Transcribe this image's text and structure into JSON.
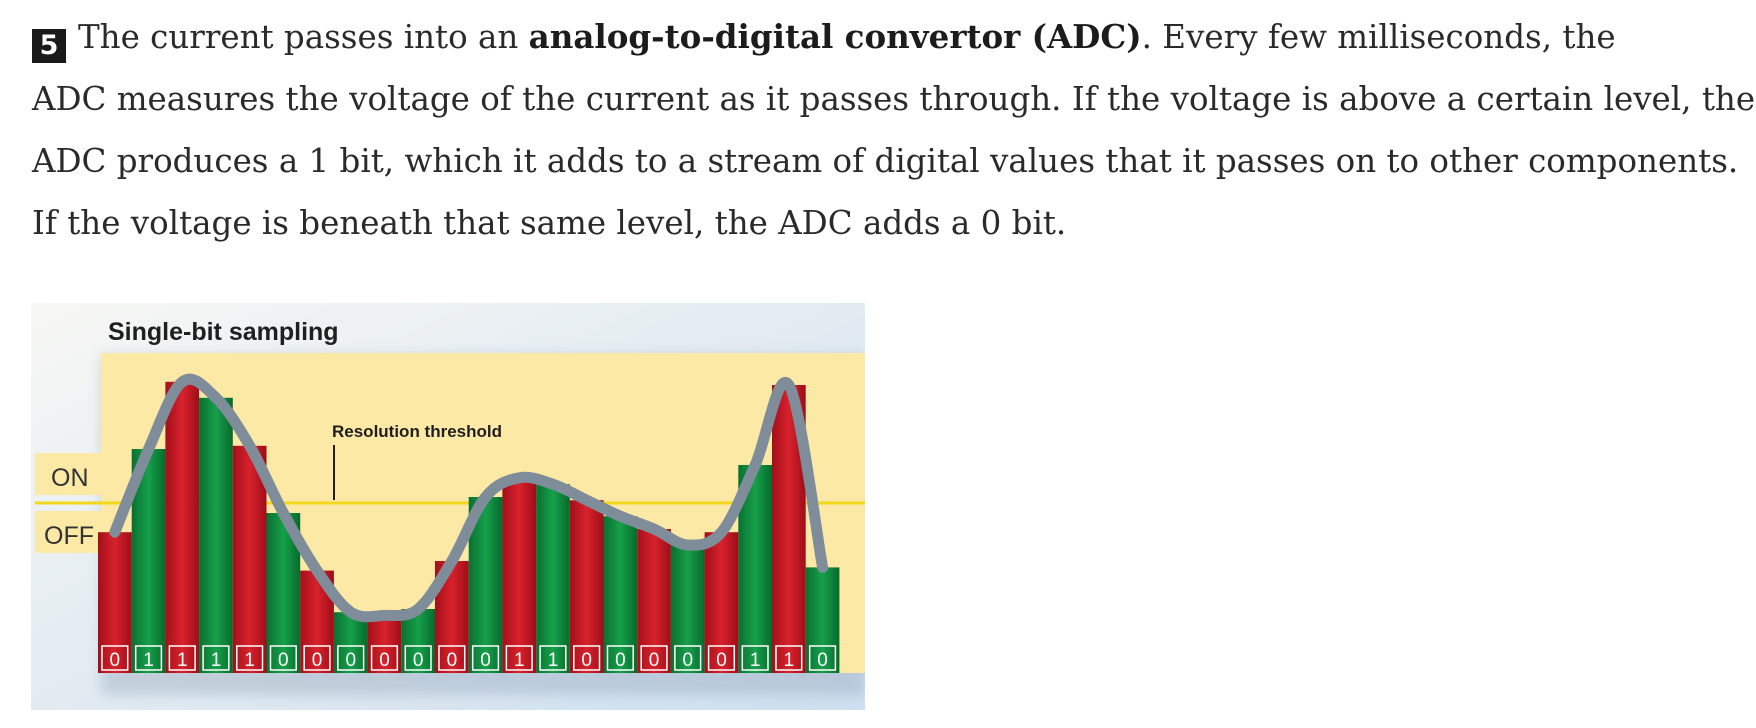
{
  "step_number": "5",
  "paragraph": {
    "line1_pre": "The current passes into an ",
    "line1_bold": "analog-to-digital convertor (ADC)",
    "line1_post": ". Every few milliseconds, the",
    "line2": "ADC measures the voltage of the current as it passes through. If the voltage is above a certain level, the",
    "line3": "ADC produces a 1 bit, which it adds to a stream of digital values that it passes on to other components.",
    "line4": "If the voltage is beneath that same level, the ADC adds a 0 bit."
  },
  "figure": {
    "title": "Single-bit sampling",
    "annotation": "Resolution threshold",
    "on_label": "ON",
    "off_label": "OFF",
    "colors": {
      "red_bar": "#c41a24",
      "green_bar": "#0f8a3c",
      "wave": "#7f8c99",
      "threshold": "#f3dc1a",
      "chart_bg": "#fde9a6"
    },
    "bar_fill_fractions": [
      0.44,
      0.7,
      0.91,
      0.86,
      0.71,
      0.5,
      0.32,
      0.19,
      0.18,
      0.2,
      0.35,
      0.55,
      0.61,
      0.59,
      0.54,
      0.49,
      0.45,
      0.4,
      0.44,
      0.65,
      0.9,
      0.33
    ],
    "bits": [
      "0",
      "1",
      "1",
      "1",
      "1",
      "0",
      "0",
      "0",
      "0",
      "0",
      "0",
      "0",
      "1",
      "1",
      "0",
      "0",
      "0",
      "0",
      "0",
      "1",
      "1",
      "0"
    ]
  }
}
